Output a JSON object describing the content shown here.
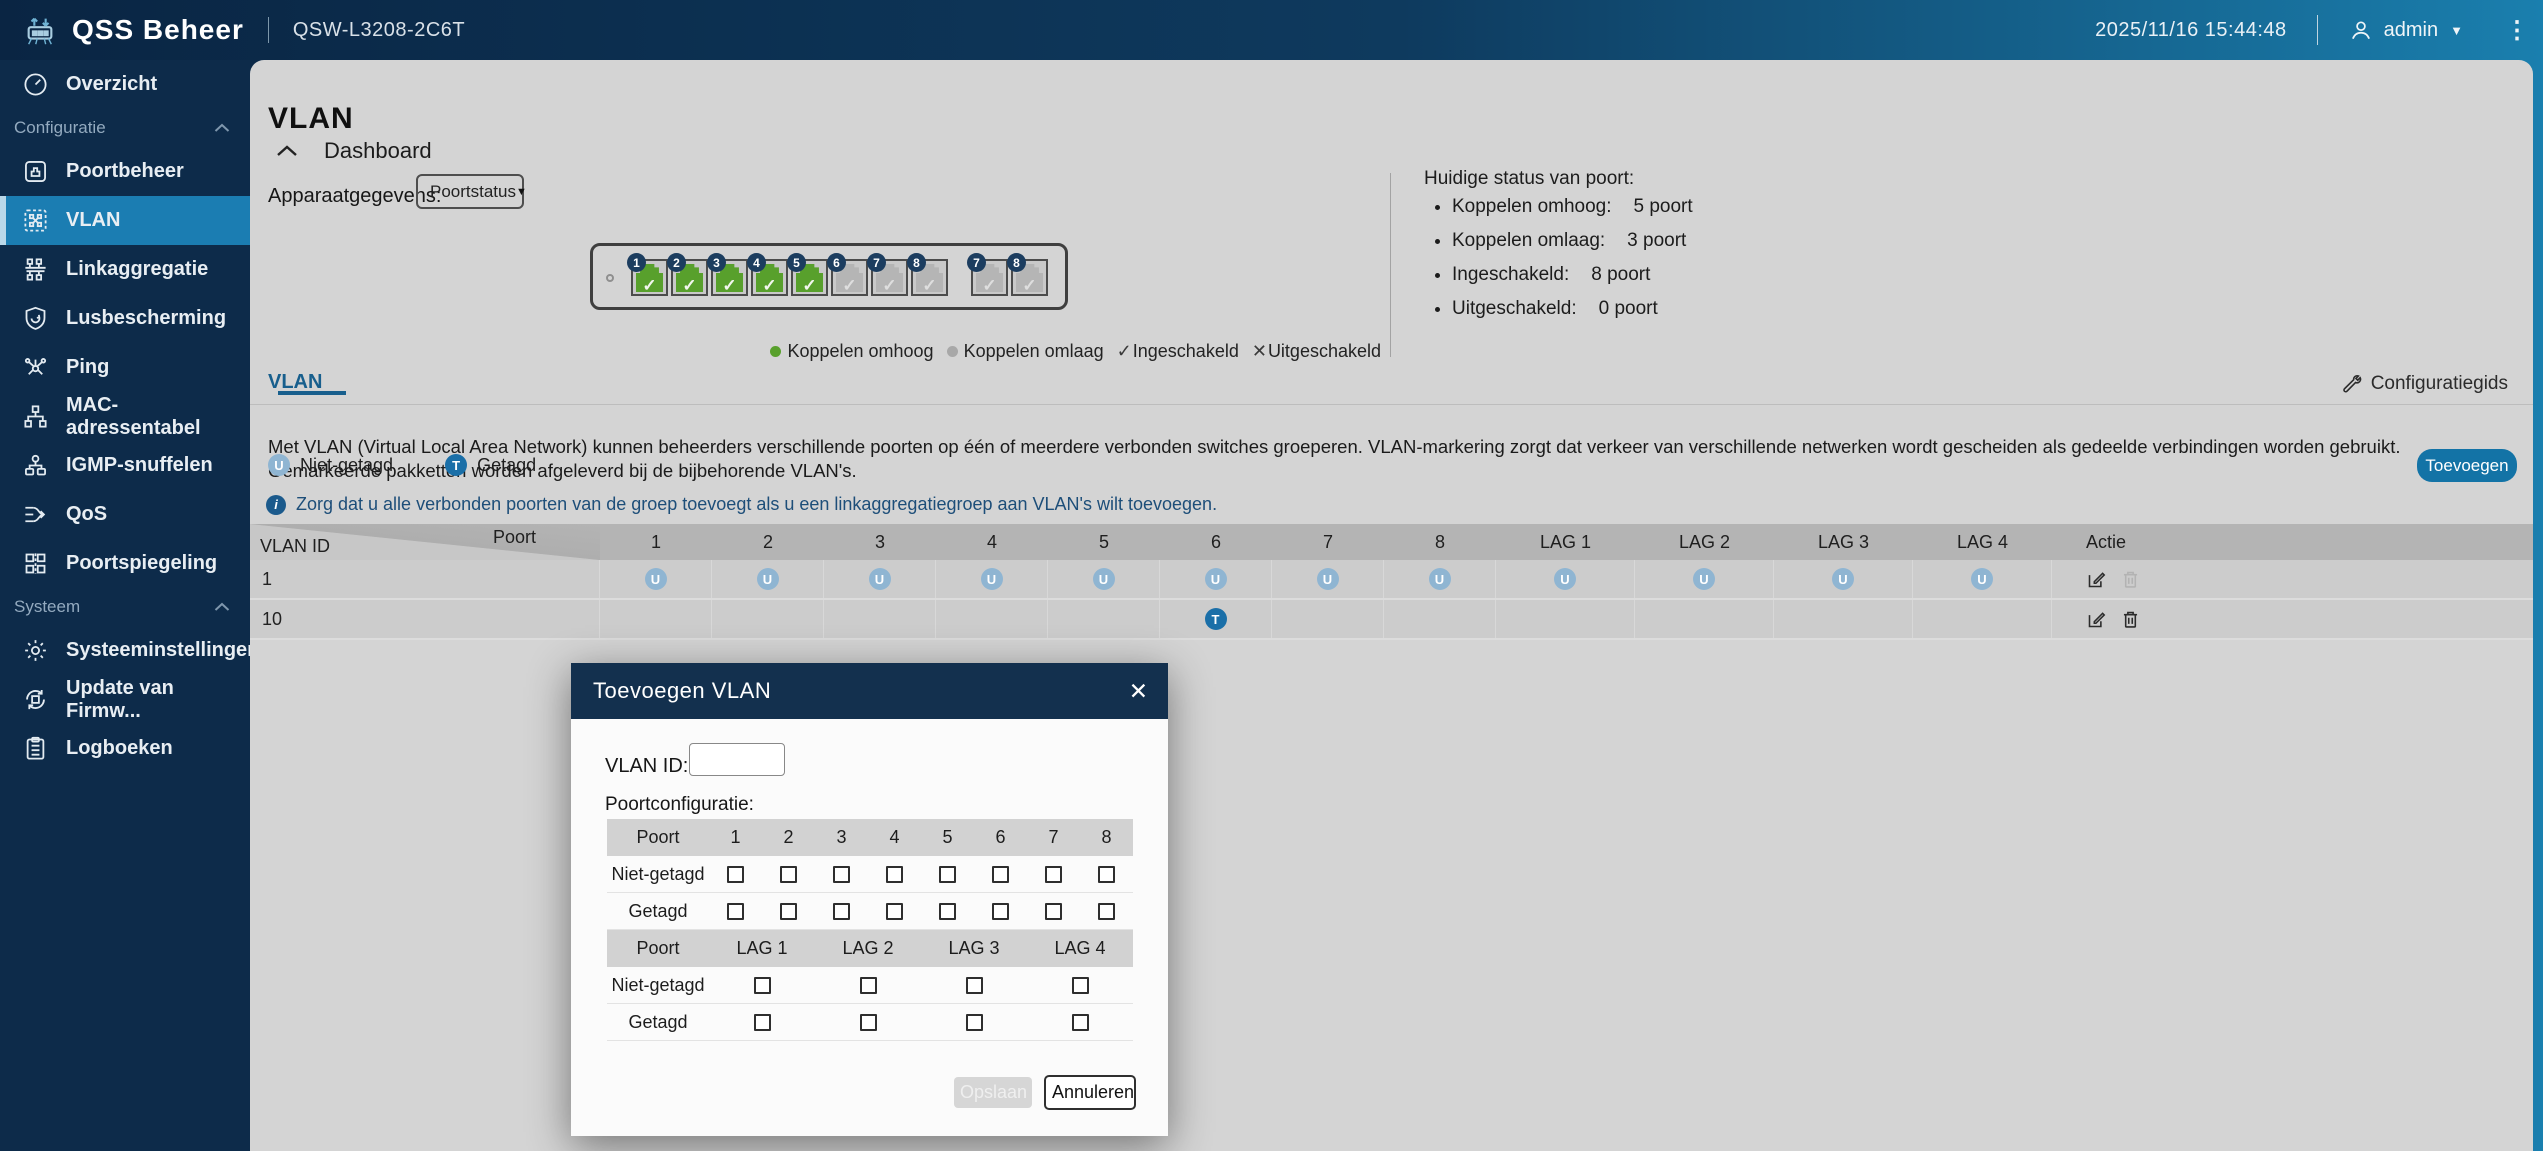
{
  "topbar": {
    "brand": "QSS Beheer",
    "device": "QSW-L3208-2C6T",
    "datetime": "2025/11/16 15:44:48",
    "user": "admin"
  },
  "sidebar": {
    "items": [
      {
        "type": "item",
        "label": "Overzicht",
        "icon": "gauge-icon",
        "selected": false
      },
      {
        "type": "section",
        "label": "Configuratie"
      },
      {
        "type": "item",
        "label": "Poortbeheer",
        "icon": "port-icon",
        "selected": false
      },
      {
        "type": "item",
        "label": "VLAN",
        "icon": "vlan-icon",
        "selected": true
      },
      {
        "type": "item",
        "label": "Linkaggregatie",
        "icon": "link-aggregation-icon",
        "selected": false
      },
      {
        "type": "item",
        "label": "Lusbescherming",
        "icon": "shield-icon",
        "selected": false
      },
      {
        "type": "item",
        "label": "Ping",
        "icon": "ping-icon",
        "selected": false
      },
      {
        "type": "item",
        "label": "MAC-adressentabel",
        "icon": "mac-table-icon",
        "selected": false
      },
      {
        "type": "item",
        "label": "IGMP-snuffelen",
        "icon": "igmp-icon",
        "selected": false
      },
      {
        "type": "item",
        "label": "QoS",
        "icon": "qos-icon",
        "selected": false
      },
      {
        "type": "item",
        "label": "Poortspiegeling",
        "icon": "port-mirror-icon",
        "selected": false
      },
      {
        "type": "section",
        "label": "Systeem"
      },
      {
        "type": "item",
        "label": "Systeeminstellingen",
        "icon": "gear-icon",
        "selected": false
      },
      {
        "type": "item",
        "label": "Update van Firmw...",
        "icon": "firmware-update-icon",
        "selected": false
      },
      {
        "type": "item",
        "label": "Logboeken",
        "icon": "logs-icon",
        "selected": false
      }
    ]
  },
  "page": {
    "title": "VLAN"
  },
  "dashboard": {
    "section_label": "Dashboard",
    "device_info_label": "Apparaatgegevens:",
    "device_info_value": "Poortstatus",
    "ports_main": [
      {
        "num": "1",
        "status": "up"
      },
      {
        "num": "2",
        "status": "up"
      },
      {
        "num": "3",
        "status": "up"
      },
      {
        "num": "4",
        "status": "up"
      },
      {
        "num": "5",
        "status": "up"
      },
      {
        "num": "6",
        "status": "down"
      },
      {
        "num": "7",
        "status": "down"
      },
      {
        "num": "8",
        "status": "down"
      }
    ],
    "ports_sfp": [
      {
        "num": "7",
        "status": "down"
      },
      {
        "num": "8",
        "status": "down"
      }
    ],
    "legend": [
      {
        "marker": "dot",
        "color": "#58a02c",
        "label": "Koppelen omhoog"
      },
      {
        "marker": "dot",
        "color": "#a8a8a8",
        "label": "Koppelen omlaag"
      },
      {
        "marker": "check",
        "label": "Ingeschakeld"
      },
      {
        "marker": "cross",
        "label": "Uitgeschakeld"
      }
    ],
    "status_title": "Huidige status van poort:",
    "status_items": [
      {
        "label": "Koppelen omhoog:",
        "value": "5 poort"
      },
      {
        "label": "Koppelen omlaag:",
        "value": "3 poort"
      },
      {
        "label": "Ingeschakeld:",
        "value": "8 poort"
      },
      {
        "label": "Uitgeschakeld:",
        "value": "0 poort"
      }
    ]
  },
  "vlan_panel": {
    "tab": "VLAN",
    "guide_label": "Configuratiegids",
    "description": "Met VLAN (Virtual Local Area Network) kunnen beheerders verschillende poorten op één of meerdere verbonden switches groeperen. VLAN-markering zorgt dat verkeer van verschillende netwerken wordt gescheiden als gedeelde verbindingen worden gebruikt. Gemarkeerde pakketten worden afgeleverd bij de bijbehorende VLAN's.",
    "badge_legend": [
      {
        "badge": "U",
        "label": "Niet-getagd"
      },
      {
        "badge": "T",
        "label": "Getagd"
      }
    ],
    "add_button": "Toevoegen",
    "info_text": "Zorg dat u alle verbonden poorten van de groep toevoegt als u een linkaggregatiegroep aan VLAN's wilt toevoegen.",
    "table": {
      "corner_top": "Poort",
      "corner_bottom": "VLAN ID",
      "columns": [
        "1",
        "2",
        "3",
        "4",
        "5",
        "6",
        "7",
        "8",
        "LAG 1",
        "LAG 2",
        "LAG 3",
        "LAG 4"
      ],
      "action_header": "Actie",
      "rows": [
        {
          "vlan_id": "1",
          "cells": [
            "U",
            "U",
            "U",
            "U",
            "U",
            "U",
            "U",
            "U",
            "U",
            "U",
            "U",
            "U"
          ],
          "edit_enabled": true,
          "delete_enabled": false
        },
        {
          "vlan_id": "10",
          "cells": [
            "",
            "",
            "",
            "",
            "",
            "T",
            "",
            "",
            "",
            "",
            "",
            ""
          ],
          "edit_enabled": true,
          "delete_enabled": true
        }
      ]
    }
  },
  "modal": {
    "title": "Toevoegen VLAN",
    "vlan_id_label": "VLAN ID:",
    "vlan_id_value": "",
    "port_config_label": "Poortconfiguratie:",
    "port_table": {
      "header": "Poort",
      "columns": [
        "1",
        "2",
        "3",
        "4",
        "5",
        "6",
        "7",
        "8"
      ],
      "row_labels": [
        "Niet-getagd",
        "Getagd"
      ]
    },
    "lag_table": {
      "header": "Poort",
      "columns": [
        "LAG 1",
        "LAG 2",
        "LAG 3",
        "LAG 4"
      ],
      "row_labels": [
        "Niet-getagd",
        "Getagd"
      ]
    },
    "save_button": "Opslaan",
    "cancel_button": "Annuleren"
  },
  "colors": {
    "topbar_left": "#0a2543",
    "topbar_right": "#1a7fae",
    "sidebar": "#0d2b4a",
    "sidebar_selected": "#1b7db2",
    "accent_button": "#1373a6",
    "modal_header": "#13304e",
    "port_up_green": "#58a02c",
    "badge_untagged": "#8fb5d2",
    "badge_tagged": "#1a6fa8",
    "card_background": "#d4d4d4"
  }
}
